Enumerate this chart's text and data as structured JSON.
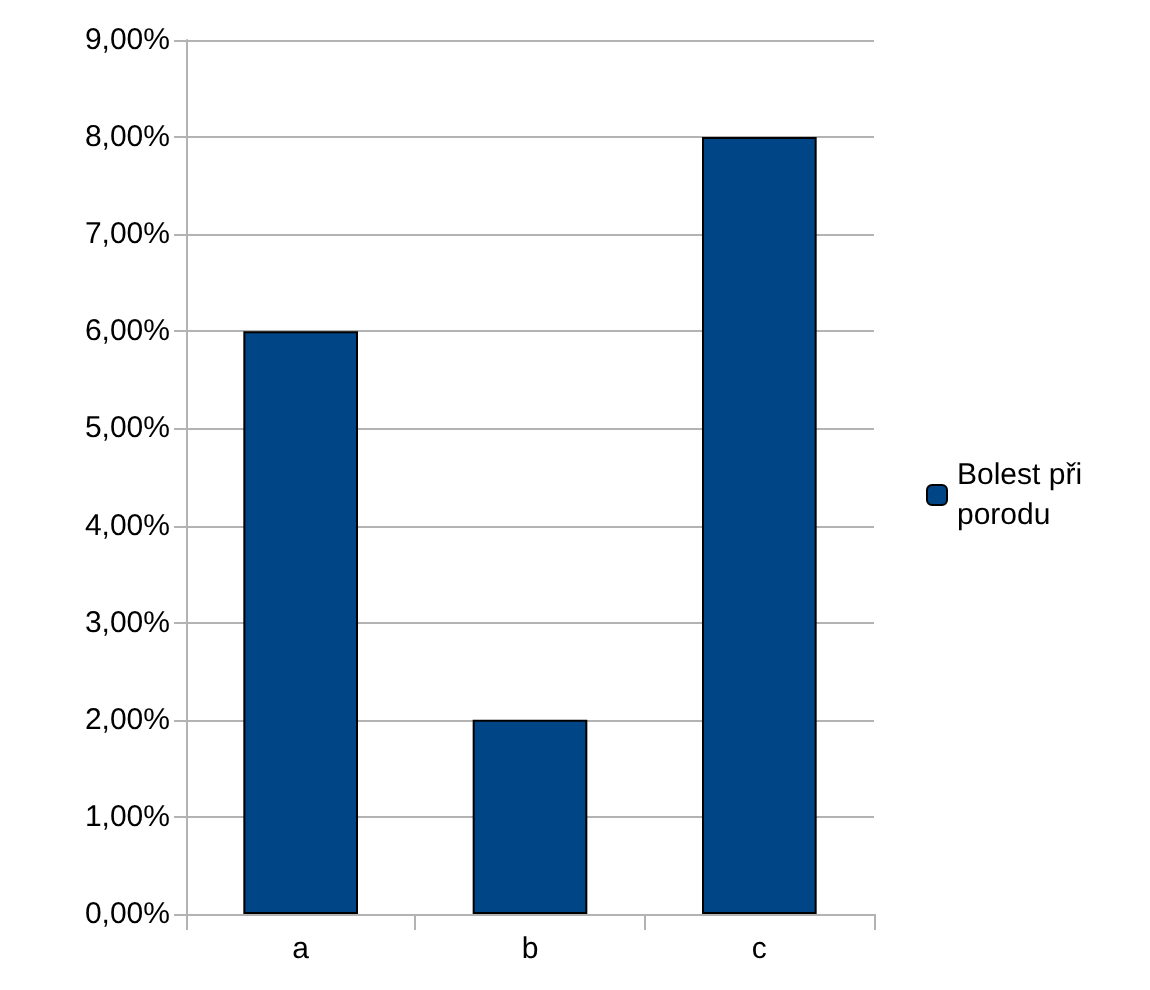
{
  "chart_data": {
    "type": "bar",
    "categories": [
      "a",
      "b",
      "c"
    ],
    "series": [
      {
        "name": "Bolest při porodu",
        "color": "#004586",
        "values": [
          6,
          2,
          8
        ]
      }
    ],
    "ylim": [
      0,
      9
    ],
    "yticks": [
      {
        "value": 0,
        "label": "0,00%"
      },
      {
        "value": 1,
        "label": "1,00%"
      },
      {
        "value": 2,
        "label": "2,00%"
      },
      {
        "value": 3,
        "label": "3,00%"
      },
      {
        "value": 4,
        "label": "4,00%"
      },
      {
        "value": 5,
        "label": "5,00%"
      },
      {
        "value": 6,
        "label": "6,00%"
      },
      {
        "value": 7,
        "label": "7,00%"
      },
      {
        "value": 8,
        "label": "8,00%"
      },
      {
        "value": 9,
        "label": "9,00%"
      }
    ],
    "grid": "y",
    "legend": "right"
  }
}
